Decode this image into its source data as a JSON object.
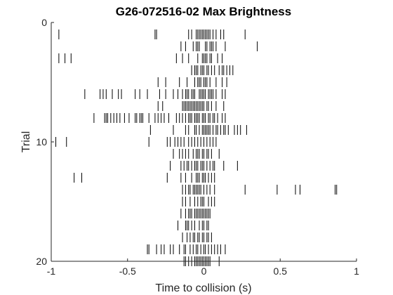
{
  "chart_data": {
    "type": "scatter",
    "title": "G26-072516-02 Max Brightness",
    "xlabel": "Time to collision (s)",
    "ylabel": "Trial",
    "xlim": [
      -1,
      1
    ],
    "ylim": [
      0,
      20
    ],
    "y_reversed": true,
    "xticks": [
      -1,
      -0.5,
      0,
      0.5,
      1
    ],
    "xtick_labels": [
      "-1",
      "-0.5",
      "0",
      "0.5",
      "1"
    ],
    "yticks": [
      0,
      10,
      20
    ],
    "ytick_labels": [
      "0",
      "10",
      "20"
    ],
    "grid": false,
    "marker": "vertical-tick",
    "color": "#000000",
    "trials": [
      {
        "trial": 1,
        "spikes": [
          -0.95,
          -0.32,
          -0.31,
          -0.1,
          -0.08,
          -0.05,
          -0.04,
          -0.03,
          -0.02,
          -0.01,
          0.0,
          0.01,
          0.02,
          0.03,
          0.04,
          0.06,
          0.08,
          0.11,
          0.13,
          0.27
        ]
      },
      {
        "trial": 2,
        "spikes": [
          -0.15,
          -0.12,
          -0.07,
          -0.05,
          -0.04,
          -0.03,
          0.01,
          0.02,
          0.04,
          0.05,
          0.06,
          0.08,
          0.14,
          0.35
        ]
      },
      {
        "trial": 3,
        "spikes": [
          -0.95,
          -0.91,
          -0.87,
          -0.18,
          -0.14,
          -0.1,
          -0.04,
          -0.01,
          0.0,
          0.01,
          0.02,
          0.04,
          0.05,
          0.09,
          0.12
        ]
      },
      {
        "trial": 4,
        "spikes": [
          -0.08,
          -0.06,
          -0.05,
          -0.04,
          -0.02,
          -0.01,
          0.0,
          0.02,
          0.03,
          0.05,
          0.07,
          0.1,
          0.12,
          0.13,
          0.15,
          0.17,
          0.19
        ]
      },
      {
        "trial": 5,
        "spikes": [
          -0.3,
          -0.25,
          -0.16,
          -0.11,
          -0.06,
          -0.04,
          -0.03,
          -0.02,
          0.0,
          0.01,
          0.02,
          0.04,
          0.08,
          0.12,
          0.15
        ]
      },
      {
        "trial": 6,
        "spikes": [
          -0.78,
          -0.68,
          -0.66,
          -0.64,
          -0.6,
          -0.56,
          -0.54,
          -0.45,
          -0.42,
          -0.37,
          -0.29,
          -0.25,
          -0.2,
          -0.17,
          -0.14,
          -0.12,
          -0.11,
          -0.1,
          -0.08,
          -0.07,
          -0.06,
          -0.03,
          -0.02,
          -0.01,
          0.0,
          0.01,
          0.03,
          0.04,
          0.05,
          0.06,
          0.08,
          0.12,
          0.14
        ]
      },
      {
        "trial": 7,
        "spikes": [
          -0.3,
          -0.27,
          -0.14,
          -0.13,
          -0.12,
          -0.11,
          -0.1,
          -0.09,
          -0.08,
          -0.07,
          -0.06,
          -0.05,
          -0.04,
          -0.03,
          -0.02,
          -0.01,
          0.0,
          0.02,
          0.03,
          0.05,
          0.08,
          0.13
        ]
      },
      {
        "trial": 8,
        "spikes": [
          -0.72,
          -0.65,
          -0.64,
          -0.63,
          -0.61,
          -0.59,
          -0.57,
          -0.55,
          -0.52,
          -0.49,
          -0.45,
          -0.44,
          -0.42,
          -0.41,
          -0.4,
          -0.36,
          -0.32,
          -0.3,
          -0.28,
          -0.26,
          -0.23,
          -0.18,
          -0.16,
          -0.14,
          -0.12,
          -0.1,
          -0.09,
          -0.08,
          -0.06,
          -0.05,
          -0.04,
          -0.03,
          -0.01,
          0.0,
          0.01,
          0.03,
          0.04,
          0.06,
          0.07,
          0.09,
          0.12,
          0.14
        ]
      },
      {
        "trial": 9,
        "spikes": [
          -0.35,
          -0.2,
          -0.12,
          -0.1,
          -0.06,
          -0.05,
          -0.03,
          -0.01,
          0.0,
          0.01,
          0.02,
          0.03,
          0.04,
          0.06,
          0.08,
          0.09,
          0.11,
          0.13,
          0.14,
          0.16,
          0.2,
          0.22,
          0.24,
          0.28
        ]
      },
      {
        "trial": 10,
        "spikes": [
          -0.97,
          -0.9,
          -0.36,
          -0.24,
          -0.22,
          -0.19,
          -0.17,
          -0.15,
          -0.13,
          -0.1,
          -0.08,
          -0.06,
          -0.04,
          -0.02,
          0.0,
          0.02,
          0.04,
          0.06,
          0.08
        ]
      },
      {
        "trial": 11,
        "spikes": [
          -0.2,
          -0.16,
          -0.14,
          -0.12,
          -0.1,
          -0.07,
          -0.05,
          -0.04,
          -0.03,
          -0.01,
          0.0,
          0.02,
          0.03,
          0.05,
          0.1
        ]
      },
      {
        "trial": 12,
        "spikes": [
          -0.22,
          -0.15,
          -0.13,
          -0.11,
          -0.1,
          -0.08,
          -0.06,
          -0.05,
          -0.04,
          -0.02,
          -0.01,
          0.0,
          0.02,
          0.04,
          0.06,
          0.07,
          0.13,
          0.22
        ]
      },
      {
        "trial": 13,
        "spikes": [
          -0.85,
          -0.8,
          -0.24,
          -0.15,
          -0.12,
          -0.08,
          -0.05,
          -0.04,
          -0.03,
          -0.01,
          0.0,
          0.01,
          0.03,
          0.05,
          0.07
        ]
      },
      {
        "trial": 14,
        "spikes": [
          -0.14,
          -0.12,
          -0.1,
          -0.09,
          -0.07,
          -0.06,
          -0.05,
          -0.04,
          -0.03,
          -0.02,
          0.0,
          0.02,
          0.04,
          0.07,
          0.27,
          0.48,
          0.6,
          0.63,
          0.86,
          0.87
        ]
      },
      {
        "trial": 15,
        "spikes": [
          -0.14,
          -0.12,
          -0.09,
          -0.06,
          -0.04,
          -0.02,
          -0.01,
          0.0,
          0.03,
          0.05,
          0.07
        ]
      },
      {
        "trial": 16,
        "spikes": [
          -0.15,
          -0.12,
          -0.1,
          -0.09,
          -0.08,
          -0.06,
          -0.05,
          -0.04,
          -0.03,
          -0.02,
          -0.01,
          0.0,
          0.01,
          0.02,
          0.03,
          0.04
        ]
      },
      {
        "trial": 17,
        "spikes": [
          -0.17,
          -0.12,
          -0.11,
          -0.1,
          -0.08,
          -0.06,
          -0.03,
          -0.01,
          0.0,
          0.02,
          0.03
        ]
      },
      {
        "trial": 18,
        "spikes": [
          -0.14,
          -0.11,
          -0.09,
          -0.07,
          -0.06,
          -0.04,
          -0.03,
          -0.01,
          0.0,
          0.02,
          0.03,
          0.05
        ]
      },
      {
        "trial": 19,
        "spikes": [
          -0.37,
          -0.36,
          -0.31,
          -0.28,
          -0.26,
          -0.22,
          -0.2,
          -0.16,
          -0.13,
          -0.12,
          -0.09,
          -0.07,
          -0.05,
          -0.04,
          -0.02,
          0.0,
          0.01,
          0.03,
          0.05,
          0.07,
          0.09,
          0.11,
          0.14
        ]
      },
      {
        "trial": 20,
        "spikes": [
          -0.13,
          -0.12,
          -0.1,
          -0.08,
          -0.06,
          -0.05,
          -0.04,
          -0.03,
          -0.02,
          -0.01,
          0.0,
          0.01,
          0.02,
          0.03,
          0.04,
          0.1
        ]
      }
    ]
  }
}
